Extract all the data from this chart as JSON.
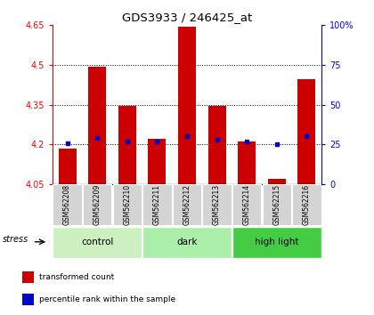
{
  "title": "GDS3933 / 246425_at",
  "samples": [
    "GSM562208",
    "GSM562209",
    "GSM562210",
    "GSM562211",
    "GSM562212",
    "GSM562213",
    "GSM562214",
    "GSM562215",
    "GSM562216"
  ],
  "bar_bottoms": [
    4.05,
    4.05,
    4.05,
    4.05,
    4.05,
    4.05,
    4.05,
    4.05,
    4.05
  ],
  "bar_tops": [
    4.185,
    4.495,
    4.345,
    4.22,
    4.645,
    4.345,
    4.21,
    4.07,
    4.445
  ],
  "percentile_values": [
    26,
    29,
    27,
    27,
    30,
    28,
    27,
    25,
    30
  ],
  "ylim_left": [
    4.05,
    4.65
  ],
  "ylim_right": [
    0,
    100
  ],
  "yticks_left": [
    4.05,
    4.2,
    4.35,
    4.5,
    4.65
  ],
  "ytick_labels_left": [
    "4.05",
    "4.2",
    "4.35",
    "4.5",
    "4.65"
  ],
  "yticks_right": [
    0,
    25,
    50,
    75,
    100
  ],
  "ytick_labels_right": [
    "0",
    "25",
    "50",
    "75",
    "100%"
  ],
  "grid_lines": [
    4.2,
    4.35,
    4.5
  ],
  "groups": [
    {
      "label": "control",
      "indices": [
        0,
        1,
        2
      ],
      "color": "#ccf0c0"
    },
    {
      "label": "dark",
      "indices": [
        3,
        4,
        5
      ],
      "color": "#aaeeaa"
    },
    {
      "label": "high light",
      "indices": [
        6,
        7,
        8
      ],
      "color": "#44cc44"
    }
  ],
  "stress_label": "stress",
  "bar_color": "#cc0000",
  "blue_color": "#0000cc",
  "bar_width": 0.6,
  "sample_bg_color": "#d4d4d4",
  "legend_items": [
    {
      "label": "transformed count",
      "color": "#cc0000"
    },
    {
      "label": "percentile rank within the sample",
      "color": "#0000cc"
    }
  ]
}
